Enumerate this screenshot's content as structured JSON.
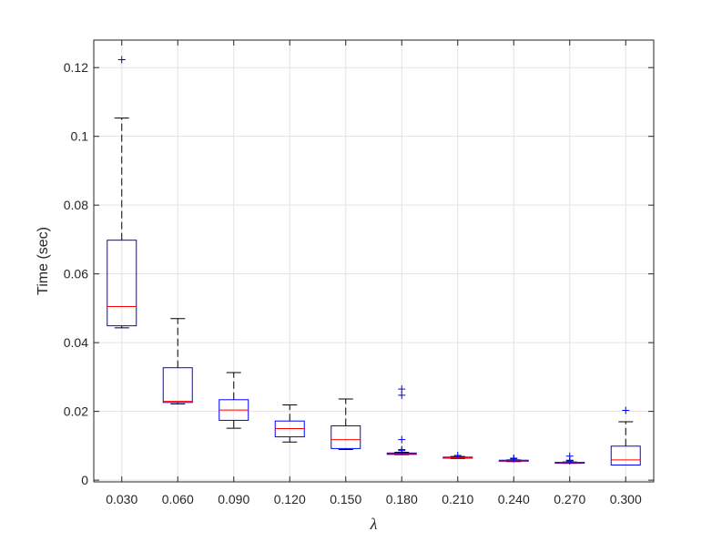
{
  "chart_data": {
    "type": "boxplot",
    "title": "",
    "xlabel": "λ",
    "ylabel": "Time (sec)",
    "categories": [
      "0.030",
      "0.060",
      "0.090",
      "0.120",
      "0.150",
      "0.180",
      "0.210",
      "0.240",
      "0.270",
      "0.300"
    ],
    "ylim": [
      -0.0005,
      0.128
    ],
    "yticks": [
      0,
      0.02,
      0.04,
      0.06,
      0.08,
      0.1,
      0.12
    ],
    "ytick_labels": [
      "0",
      "0.02",
      "0.04",
      "0.06",
      "0.08",
      "0.1",
      "0.12"
    ],
    "grid": true,
    "legend": "none",
    "boxes": [
      {
        "category": "0.030",
        "whisker_low": 0.0443,
        "q1": 0.0449,
        "median": 0.0505,
        "q3": 0.0698,
        "whisker_high": 0.1053,
        "outliers": [
          0.1223
        ]
      },
      {
        "category": "0.060",
        "whisker_low": 0.0222,
        "q1": 0.0226,
        "median": 0.0229,
        "q3": 0.0327,
        "whisker_high": 0.047,
        "outliers": []
      },
      {
        "category": "0.090",
        "whisker_low": 0.0151,
        "q1": 0.0174,
        "median": 0.0204,
        "q3": 0.0234,
        "whisker_high": 0.0313,
        "outliers": []
      },
      {
        "category": "0.120",
        "whisker_low": 0.0111,
        "q1": 0.0126,
        "median": 0.015,
        "q3": 0.0172,
        "whisker_high": 0.0219,
        "outliers": []
      },
      {
        "category": "0.150",
        "whisker_low": 0.0089,
        "q1": 0.0092,
        "median": 0.0118,
        "q3": 0.0158,
        "whisker_high": 0.0236,
        "outliers": []
      },
      {
        "category": "0.180",
        "whisker_low": 0.0074,
        "q1": 0.0075,
        "median": 0.0077,
        "q3": 0.0079,
        "whisker_high": 0.0081,
        "outliers": [
          0.0086,
          0.0089,
          0.0118,
          0.0247,
          0.0265
        ]
      },
      {
        "category": "0.210",
        "whisker_low": 0.0063,
        "q1": 0.0064,
        "median": 0.0065,
        "q3": 0.0067,
        "whisker_high": 0.0069,
        "outliers": [
          0.0072
        ]
      },
      {
        "category": "0.240",
        "whisker_low": 0.0054,
        "q1": 0.0055,
        "median": 0.0056,
        "q3": 0.0058,
        "whisker_high": 0.0059,
        "outliers": [
          0.0062,
          0.0064
        ]
      },
      {
        "category": "0.270",
        "whisker_low": 0.0049,
        "q1": 0.005,
        "median": 0.0051,
        "q3": 0.0052,
        "whisker_high": 0.0053,
        "outliers": [
          0.0056,
          0.0058,
          0.007
        ]
      },
      {
        "category": "0.300",
        "whisker_low": 0.0044,
        "q1": 0.0044,
        "median": 0.0059,
        "q3": 0.0099,
        "whisker_high": 0.017,
        "outliers": [
          0.0203
        ]
      }
    ],
    "colors": {
      "box": "#0000ff",
      "median": "#ff0000",
      "whisker": "#000000",
      "outlier": "#0000ff",
      "grid": "#e3e3e3",
      "axis": "#262626"
    }
  }
}
